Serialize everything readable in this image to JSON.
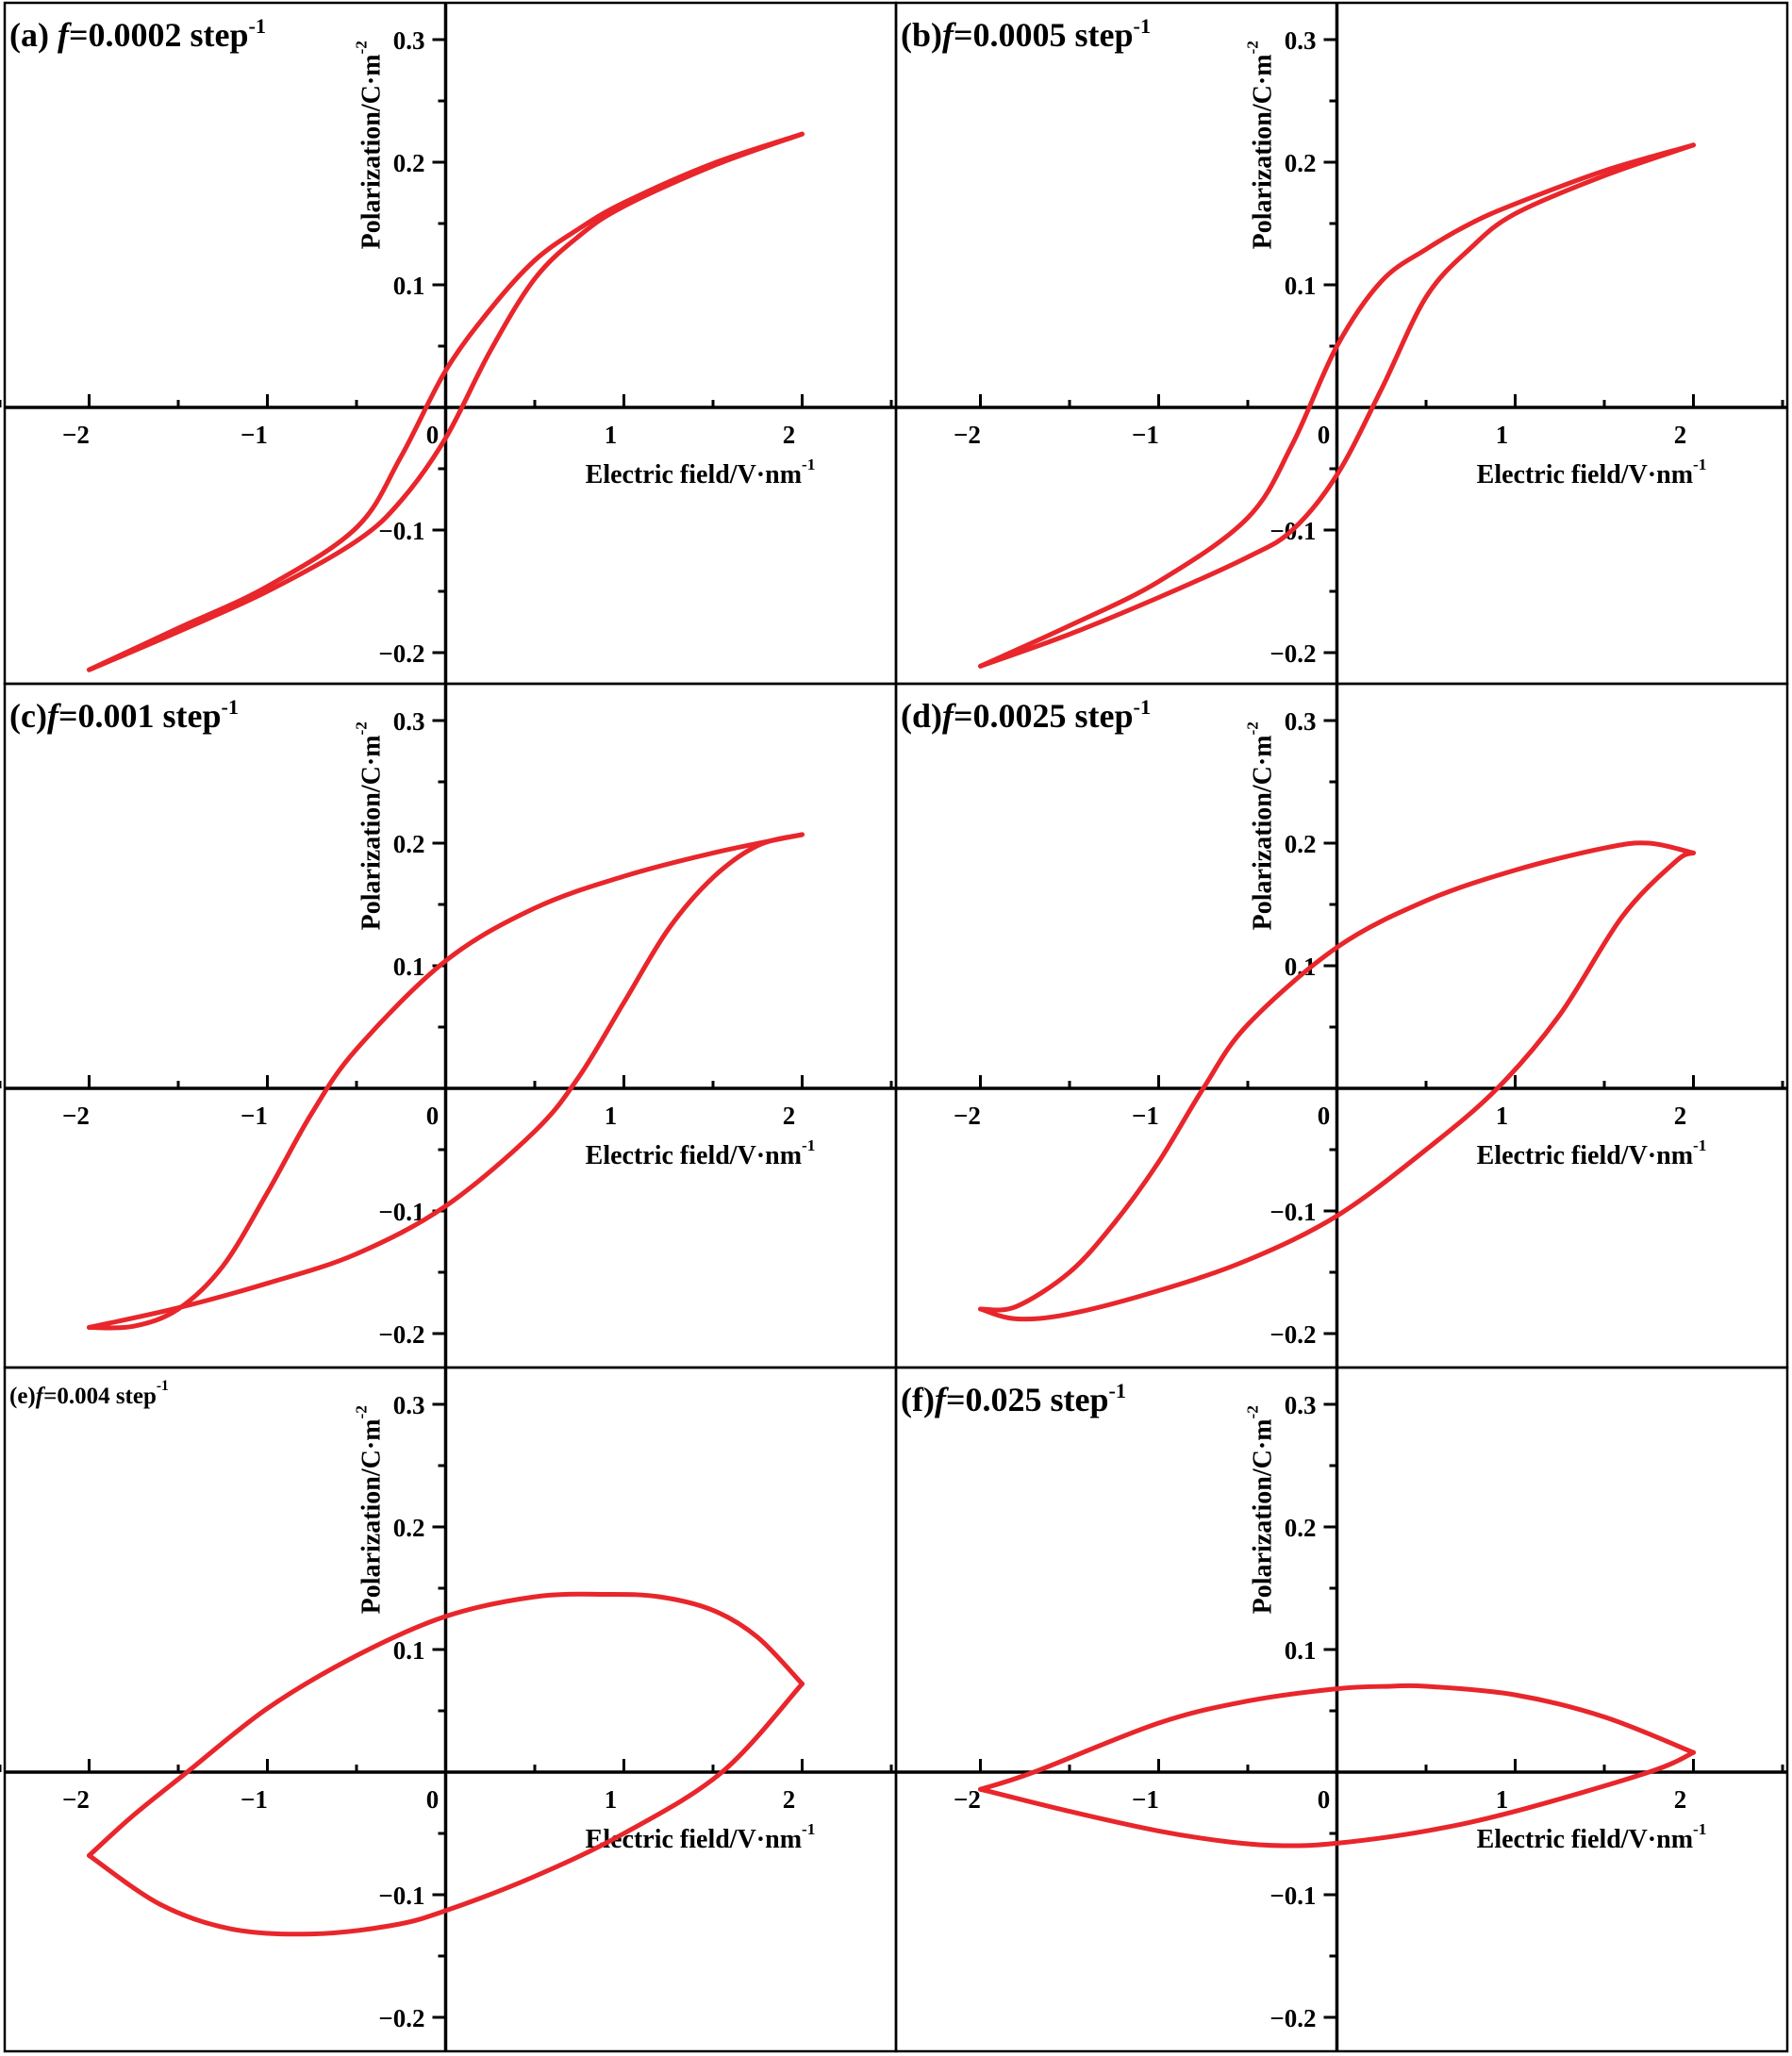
{
  "chart_data": [
    {
      "type": "line",
      "panel_label": "(a) ",
      "f_symbol": "f",
      "freq_text": "=0.0002 step",
      "freq_sup": "-1",
      "ylabel": "Polarization/C·m",
      "ylabel_sup": "-2",
      "xlabel": "Electric field/V·nm",
      "xlabel_sup": "-1",
      "xlim": [
        -2.5,
        2.5
      ],
      "ylim": [
        -0.25,
        0.33
      ],
      "xticks": [
        -2,
        -1,
        0,
        1,
        2
      ],
      "xtick_labels": [
        "−2",
        "−1",
        "0",
        "1",
        "2"
      ],
      "yticks": [
        -0.2,
        -0.1,
        0.1,
        0.2,
        0.3
      ],
      "ytick_labels": [
        "−0.2",
        "−0.1",
        "0.1",
        "0.2",
        "0.3"
      ],
      "color": "#e8262b",
      "series": [
        {
          "x": [
            -2,
            -1.5,
            -1,
            -0.5,
            -0.25,
            0,
            0.25,
            0.5,
            0.75,
            1,
            1.5,
            2
          ],
          "y": [
            -0.214,
            -0.183,
            -0.15,
            -0.109,
            -0.076,
            -0.025,
            0.046,
            0.105,
            0.14,
            0.164,
            0.197,
            0.223
          ]
        },
        {
          "x": [
            2,
            1.5,
            1,
            0.75,
            0.5,
            0.25,
            0,
            -0.25,
            -0.5,
            -1,
            -1.5,
            -2
          ],
          "y": [
            0.223,
            0.199,
            0.167,
            0.146,
            0.12,
            0.08,
            0.03,
            -0.04,
            -0.098,
            -0.146,
            -0.18,
            -0.214
          ]
        }
      ]
    },
    {
      "type": "line",
      "panel_label": "(b)",
      "f_symbol": "f",
      "freq_text": "=0.0005 step",
      "freq_sup": "-1",
      "ylabel": "Polarization/C·m",
      "ylabel_sup": "-2",
      "xlabel": "Electric field/V·nm",
      "xlabel_sup": "-1",
      "xlim": [
        -2.5,
        2.5
      ],
      "ylim": [
        -0.25,
        0.33
      ],
      "xticks": [
        -2,
        -1,
        0,
        1,
        2
      ],
      "xtick_labels": [
        "−2",
        "−1",
        "0",
        "1",
        "2"
      ],
      "yticks": [
        -0.2,
        -0.1,
        0.1,
        0.2,
        0.3
      ],
      "ytick_labels": [
        "−0.2",
        "−0.1",
        "0.1",
        "0.2",
        "0.3"
      ],
      "color": "#e8262b",
      "series": [
        {
          "x": [
            -2,
            -1.5,
            -1,
            -0.5,
            -0.25,
            0,
            0.25,
            0.5,
            0.75,
            1,
            1.5,
            2
          ],
          "y": [
            -0.211,
            -0.185,
            -0.155,
            -0.122,
            -0.1,
            -0.055,
            0.015,
            0.09,
            0.13,
            0.158,
            0.189,
            0.214
          ]
        },
        {
          "x": [
            2,
            1.5,
            1,
            0.75,
            0.5,
            0.25,
            0,
            -0.25,
            -0.5,
            -1,
            -1.5,
            -2
          ],
          "y": [
            0.214,
            0.193,
            0.166,
            0.15,
            0.129,
            0.103,
            0.05,
            -0.03,
            -0.09,
            -0.142,
            -0.178,
            -0.211
          ]
        }
      ]
    },
    {
      "type": "line",
      "panel_label": "(c)",
      "f_symbol": "f",
      "freq_text": "=0.001 step",
      "freq_sup": "-1",
      "ylabel": "Polarization/C·m",
      "ylabel_sup": "-2",
      "xlabel": "Electric field/V·nm",
      "xlabel_sup": "-1",
      "xlim": [
        -2.5,
        2.5
      ],
      "ylim": [
        -0.25,
        0.33
      ],
      "xticks": [
        -2,
        -1,
        0,
        1,
        2
      ],
      "xtick_labels": [
        "−2",
        "−1",
        "0",
        "1",
        "2"
      ],
      "yticks": [
        -0.2,
        -0.1,
        0.1,
        0.2,
        0.3
      ],
      "ytick_labels": [
        "−0.2",
        "−0.1",
        "0.1",
        "0.2",
        "0.3"
      ],
      "color": "#e8262b",
      "series": [
        {
          "x": [
            -2,
            -1.5,
            -1,
            -0.5,
            0,
            0.5,
            0.75,
            1,
            1.25,
            1.5,
            1.75,
            2
          ],
          "y": [
            -0.195,
            -0.179,
            -0.159,
            -0.135,
            -0.096,
            -0.035,
            0.01,
            0.07,
            0.13,
            0.172,
            0.198,
            0.207
          ]
        },
        {
          "x": [
            2,
            1.5,
            1,
            0.5,
            0,
            -0.5,
            -0.75,
            -1,
            -1.25,
            -1.5,
            -1.75,
            -2
          ],
          "y": [
            0.207,
            0.192,
            0.173,
            0.147,
            0.104,
            0.032,
            -0.02,
            -0.085,
            -0.145,
            -0.18,
            -0.194,
            -0.195
          ]
        }
      ]
    },
    {
      "type": "line",
      "panel_label": "(d)",
      "f_symbol": "f",
      "freq_text": "=0.0025 step",
      "freq_sup": "-1",
      "ylabel": "Polarization/C·m",
      "ylabel_sup": "-2",
      "xlabel": "Electric field/V·nm",
      "xlabel_sup": "-1",
      "xlim": [
        -2.5,
        2.5
      ],
      "ylim": [
        -0.25,
        0.33
      ],
      "xticks": [
        -2,
        -1,
        0,
        1,
        2
      ],
      "xtick_labels": [
        "−2",
        "−1",
        "0",
        "1",
        "2"
      ],
      "yticks": [
        -0.2,
        -0.1,
        0.1,
        0.2,
        0.3
      ],
      "ytick_labels": [
        "−0.2",
        "−0.1",
        "0.1",
        "0.2",
        "0.3"
      ],
      "color": "#e8262b",
      "series": [
        {
          "x": [
            -2,
            -1.8,
            -1.5,
            -1,
            -0.5,
            0,
            0.5,
            0.9,
            1.25,
            1.6,
            1.9,
            2
          ],
          "y": [
            -0.18,
            -0.188,
            -0.184,
            -0.165,
            -0.14,
            -0.104,
            -0.05,
            0.0,
            0.06,
            0.14,
            0.185,
            0.192
          ]
        },
        {
          "x": [
            2,
            1.75,
            1.5,
            1,
            0.5,
            0,
            -0.5,
            -0.75,
            -1,
            -1.25,
            -1.5,
            -1.8,
            -2
          ],
          "y": [
            0.192,
            0.2,
            0.196,
            0.178,
            0.153,
            0.115,
            0.052,
            0.0,
            -0.06,
            -0.11,
            -0.15,
            -0.178,
            -0.18
          ]
        }
      ]
    },
    {
      "type": "line",
      "panel_label": "(e)",
      "f_symbol": "f",
      "freq_text": "=0.004 step",
      "freq_sup": "-1",
      "ylabel": "Polarization/C·m",
      "ylabel_sup": "-2",
      "xlabel": "Electric field/V·nm",
      "xlabel_sup": "-1",
      "xlim": [
        -2.5,
        2.5
      ],
      "ylim": [
        -0.25,
        0.33
      ],
      "xticks": [
        -2,
        -1,
        0,
        1,
        2
      ],
      "xtick_labels": [
        "−2",
        "−1",
        "0",
        "1",
        "2"
      ],
      "yticks": [
        -0.2,
        -0.1,
        0.1,
        0.2,
        0.3
      ],
      "ytick_labels": [
        "−0.2",
        "−0.1",
        "0.1",
        "0.2",
        "0.3"
      ],
      "color": "#e8262b",
      "series": [
        {
          "x": [
            -2,
            -1.6,
            -1.2,
            -0.75,
            -0.3,
            0,
            0.5,
            1,
            1.55,
            2
          ],
          "y": [
            -0.068,
            -0.108,
            -0.128,
            -0.132,
            -0.125,
            -0.113,
            -0.085,
            -0.05,
            0.0,
            0.072
          ]
        },
        {
          "x": [
            2,
            1.75,
            1.5,
            1.2,
            0.9,
            0.5,
            0,
            -0.5,
            -1,
            -1.45,
            -1.75,
            -2
          ],
          "y": [
            0.072,
            0.11,
            0.132,
            0.143,
            0.145,
            0.143,
            0.127,
            0.095,
            0.052,
            0.0,
            -0.035,
            -0.068
          ]
        }
      ]
    },
    {
      "type": "line",
      "panel_label": "(f)",
      "f_symbol": "f",
      "freq_text": "=0.025 step",
      "freq_sup": "-1",
      "ylabel": "Polarization/C·m",
      "ylabel_sup": "-2",
      "xlabel": "Electric field/V·nm",
      "xlabel_sup": "-1",
      "xlim": [
        -2.5,
        2.5
      ],
      "ylim": [
        -0.25,
        0.33
      ],
      "xticks": [
        -2,
        -1,
        0,
        1,
        2
      ],
      "xtick_labels": [
        "−2",
        "−1",
        "0",
        "1",
        "2"
      ],
      "yticks": [
        -0.2,
        -0.1,
        0.1,
        0.2,
        0.3
      ],
      "ytick_labels": [
        "−0.2",
        "−0.1",
        "0.1",
        "0.2",
        "0.3"
      ],
      "color": "#e8262b",
      "series": [
        {
          "x": [
            -2,
            -1.5,
            -1,
            -0.6,
            -0.3,
            0,
            0.5,
            1,
            1.75,
            2
          ],
          "y": [
            -0.014,
            -0.032,
            -0.048,
            -0.057,
            -0.06,
            -0.058,
            -0.048,
            -0.032,
            0.0,
            0.016
          ]
        },
        {
          "x": [
            2,
            1.5,
            1,
            0.5,
            0.3,
            0,
            -0.5,
            -1,
            -1.7,
            -2
          ],
          "y": [
            0.016,
            0.045,
            0.063,
            0.07,
            0.07,
            0.068,
            0.058,
            0.04,
            0.0,
            -0.014
          ]
        }
      ]
    }
  ]
}
